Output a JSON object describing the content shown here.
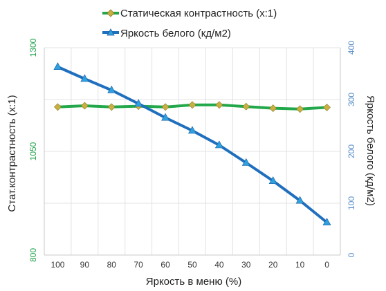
{
  "chart_data": {
    "type": "line",
    "x_categories": [
      "100",
      "90",
      "80",
      "70",
      "60",
      "50",
      "40",
      "30",
      "20",
      "10",
      "0"
    ],
    "xlabel": "Яркость в меню (%)",
    "grid": true,
    "legend_position": "top",
    "y_left": {
      "label": "Стат.контрастность  (x:1)",
      "range": [
        800,
        1300
      ],
      "ticks": [
        "800",
        "1050",
        "1300"
      ],
      "color": "#21a34a"
    },
    "y_right": {
      "label": "Яркость белого (кд/м2)",
      "range": [
        0,
        400
      ],
      "ticks": [
        "0",
        "100",
        "200",
        "300",
        "400"
      ],
      "color": "#5b8fc9"
    },
    "series": [
      {
        "name": "Статическая контрастность  (x:1)",
        "axis": "left",
        "color": "#22a84a",
        "marker_color": "#c9b042",
        "marker": "diamond",
        "values": [
          1157,
          1160,
          1157,
          1159,
          1157,
          1162,
          1162,
          1158,
          1154,
          1152,
          1156
        ]
      },
      {
        "name": "Яркость белого (кд/м2)",
        "axis": "right",
        "color": "#1f6fbf",
        "marker_color": "#2e9fdf",
        "marker": "triangle",
        "values": [
          363,
          340,
          318,
          292,
          265,
          240,
          212,
          178,
          143,
          105,
          63
        ]
      }
    ]
  }
}
